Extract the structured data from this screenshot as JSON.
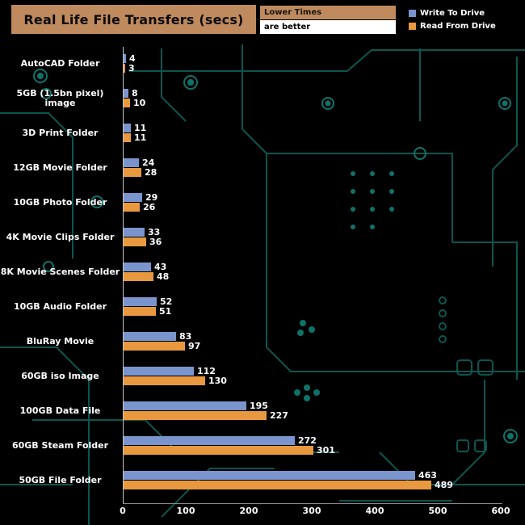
{
  "title": "Real Life File Transfers (secs)",
  "note": {
    "line1": "Lower Times",
    "line2": "are better"
  },
  "legend": {
    "series1_label": "Write To  Drive",
    "series2_label": "Read From  Drive"
  },
  "colors": {
    "write": "#7a94cd",
    "read": "#e8983e",
    "title_bg": "#bf8a5e",
    "circuit": "#0c564f",
    "circuit_bright": "#0f7268",
    "text": "#ffffff"
  },
  "chart_data": {
    "type": "bar",
    "orientation": "horizontal",
    "title": "Real Life File Transfers (secs)",
    "xlabel": "",
    "ylabel": "",
    "xlim": [
      0,
      600
    ],
    "xticks": [
      0,
      100,
      200,
      300,
      400,
      500,
      600
    ],
    "grid": false,
    "legend_position": "top-right",
    "categories": [
      "AutoCAD Folder",
      "5GB (1.5bn pixel) image",
      "3D Print Folder",
      "12GB Movie Folder",
      "10GB Photo Folder",
      "4K Movie Clips Folder",
      "8K Movie Scenes Folder",
      "10GB Audio Folder",
      "BluRay Movie",
      "60GB iso Image",
      "100GB Data File",
      "60GB Steam Folder",
      "50GB File Folder"
    ],
    "series": [
      {
        "name": "Write To Drive",
        "color": "#7a94cd",
        "values": [
          4,
          8,
          11,
          24,
          29,
          33,
          43,
          52,
          83,
          112,
          195,
          272,
          463
        ]
      },
      {
        "name": "Read From Drive",
        "color": "#e8983e",
        "values": [
          3,
          10,
          11,
          28,
          26,
          36,
          48,
          51,
          97,
          130,
          227,
          301,
          489
        ]
      }
    ]
  }
}
